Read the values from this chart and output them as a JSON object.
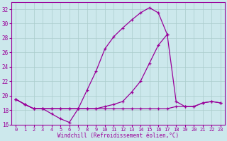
{
  "xlabel": "Windchill (Refroidissement éolien,°C)",
  "background_color": "#cce8ec",
  "grid_color": "#aacccc",
  "line_color": "#990099",
  "xlim": [
    -0.5,
    23.5
  ],
  "ylim": [
    16,
    33
  ],
  "yticks": [
    16,
    18,
    20,
    22,
    24,
    26,
    28,
    30,
    32
  ],
  "xticks": [
    0,
    1,
    2,
    3,
    4,
    5,
    6,
    7,
    8,
    9,
    10,
    11,
    12,
    13,
    14,
    15,
    16,
    17,
    18,
    19,
    20,
    21,
    22,
    23
  ],
  "line1_x": [
    0,
    1,
    2,
    3,
    4,
    5,
    6,
    7,
    8,
    9,
    10,
    11,
    12,
    13,
    14,
    15,
    16,
    17
  ],
  "line1_y": [
    19.5,
    18.8,
    18.2,
    18.2,
    17.5,
    16.8,
    16.3,
    18.2,
    20.8,
    23.4,
    26.5,
    28.2,
    29.4,
    30.5,
    31.5,
    32.2,
    31.5,
    28.5
  ],
  "line2_x": [
    0,
    1,
    2,
    3,
    4,
    5,
    6,
    7,
    8,
    9,
    10,
    11,
    12,
    13,
    14,
    15,
    16,
    17,
    18,
    19,
    20,
    21,
    22,
    23
  ],
  "line2_y": [
    19.5,
    18.8,
    18.2,
    18.2,
    18.2,
    18.2,
    18.2,
    18.2,
    18.2,
    18.2,
    18.5,
    18.8,
    19.2,
    20.5,
    22.0,
    24.5,
    27.0,
    28.5,
    19.2,
    18.5,
    18.5,
    19.0,
    19.2,
    19.0
  ],
  "line3_x": [
    0,
    1,
    2,
    3,
    4,
    5,
    6,
    7,
    8,
    9,
    10,
    11,
    12,
    13,
    14,
    15,
    16,
    17,
    18,
    19,
    20,
    21,
    22,
    23
  ],
  "line3_y": [
    19.5,
    18.8,
    18.2,
    18.2,
    18.2,
    18.2,
    18.2,
    18.2,
    18.2,
    18.2,
    18.2,
    18.2,
    18.2,
    18.2,
    18.2,
    18.2,
    18.2,
    18.2,
    18.5,
    18.5,
    18.5,
    19.0,
    19.2,
    19.0
  ]
}
